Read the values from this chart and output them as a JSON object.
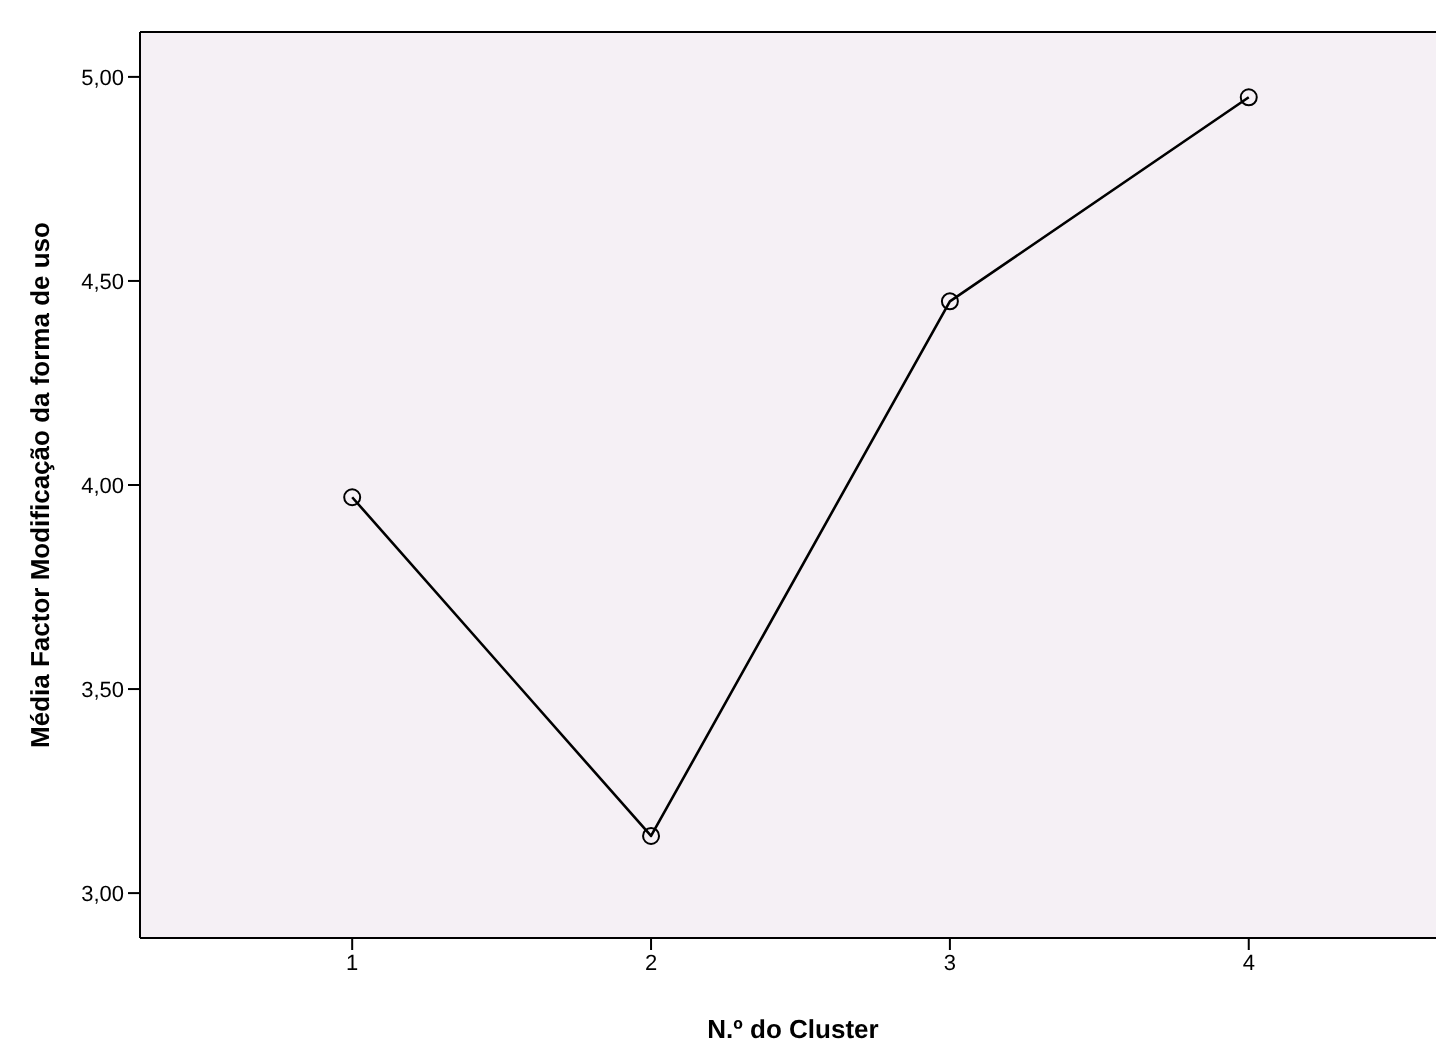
{
  "chart_data": {
    "type": "line",
    "xlabel": "N.º do Cluster",
    "ylabel": "Média Factor Modificação da forma de uso",
    "x": [
      1,
      2,
      3,
      4
    ],
    "series": [
      {
        "color": "#000000",
        "values": [
          3.97,
          3.14,
          4.45,
          4.95
        ]
      }
    ],
    "xlim": [
      0.29,
      4.66
    ],
    "xticks": [
      1,
      2,
      3,
      4
    ],
    "ylim": [
      2.89,
      5.11
    ],
    "yticks": [
      {
        "value": 3,
        "label": "3,00"
      },
      {
        "value": 3.5,
        "label": "3,50"
      },
      {
        "value": 4,
        "label": "4,00"
      },
      {
        "value": 4.5,
        "label": "4,50"
      },
      {
        "value": 5,
        "label": "5,00"
      }
    ],
    "marker": "circle",
    "line_style": "solid",
    "grid": false
  }
}
